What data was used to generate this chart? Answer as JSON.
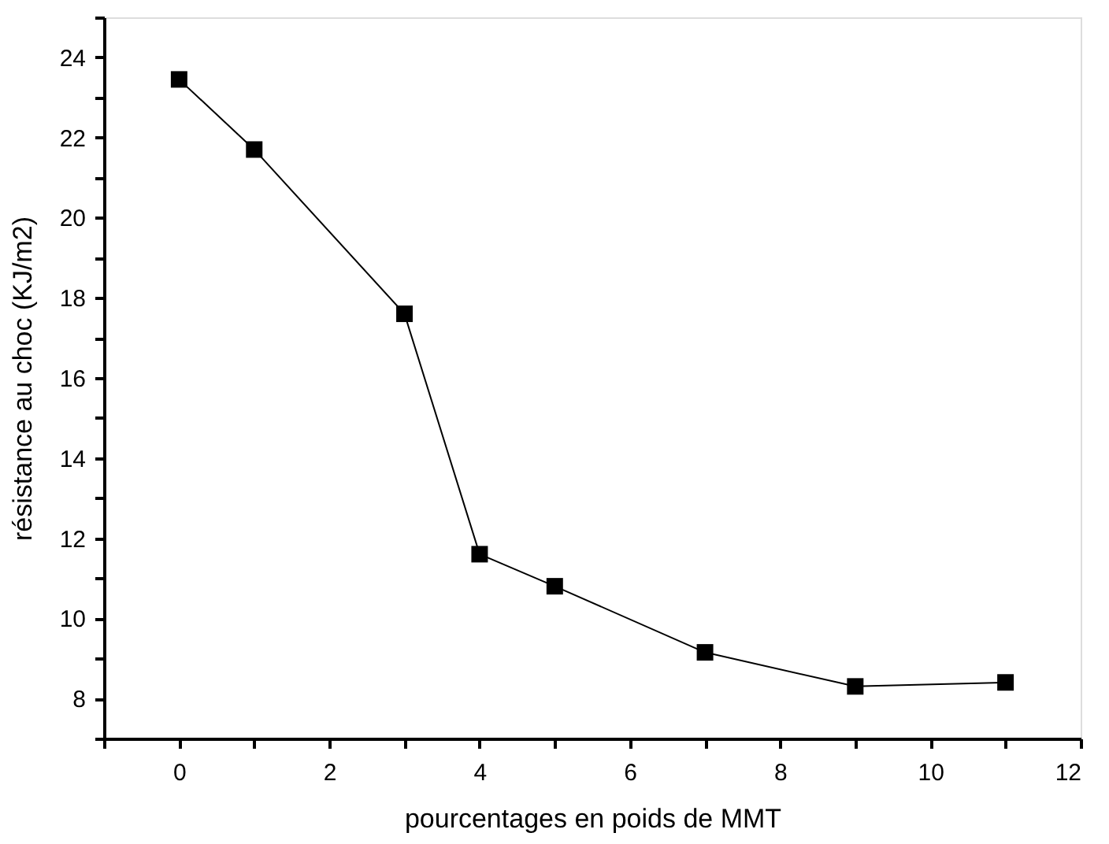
{
  "chart_data": {
    "type": "line",
    "xlabel": "pourcentages en poids de MMT",
    "ylabel": "résistance au choc (KJ/m2)",
    "x": [
      0,
      1,
      3,
      4,
      5,
      7,
      9,
      11
    ],
    "series": [
      {
        "color": "#000000",
        "values": [
          23.45,
          21.7,
          17.6,
          11.6,
          10.8,
          9.15,
          8.3,
          8.4
        ]
      }
    ],
    "xlim": [
      -1,
      12
    ],
    "ylim": [
      7,
      25
    ],
    "xticks": [
      {
        "value": -1,
        "label": null
      },
      0,
      {
        "value": 1,
        "label": null
      },
      2,
      {
        "value": 3,
        "label": null
      },
      4,
      {
        "value": 5,
        "label": null
      },
      6,
      {
        "value": 7,
        "label": null
      },
      8,
      {
        "value": 9,
        "label": null
      },
      10,
      {
        "value": 11,
        "label": null
      },
      12
    ],
    "yticks": [
      {
        "value": 7,
        "label": null
      },
      8,
      {
        "value": 9,
        "label": null
      },
      10,
      {
        "value": 11,
        "label": null
      },
      12,
      {
        "value": 13,
        "label": null
      },
      14,
      {
        "value": 15,
        "label": null
      },
      16,
      {
        "value": 17,
        "label": null
      },
      18,
      {
        "value": 19,
        "label": null
      },
      20,
      {
        "value": 21,
        "label": null
      },
      22,
      {
        "value": 23,
        "label": null
      },
      24,
      {
        "value": 25,
        "label": null
      }
    ],
    "grid": false,
    "marker": "square",
    "line_style": "solid"
  }
}
